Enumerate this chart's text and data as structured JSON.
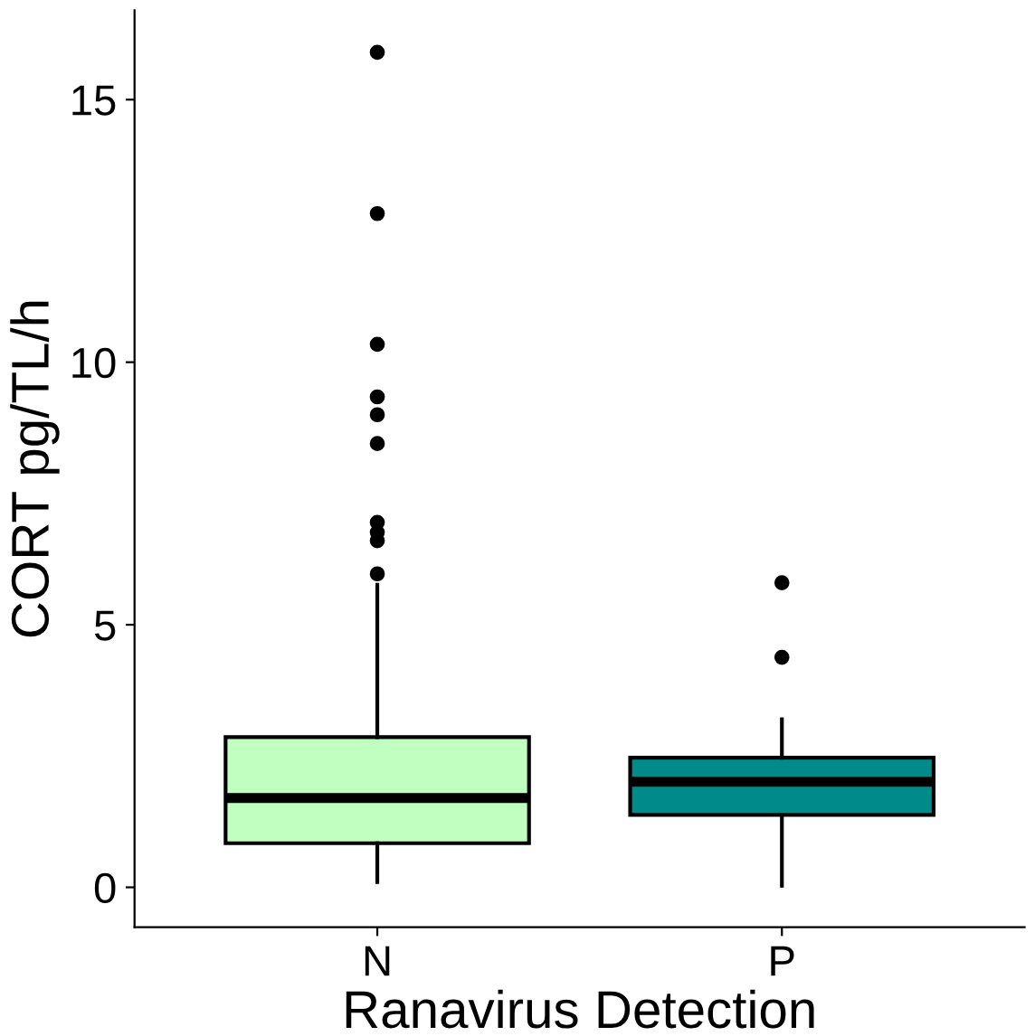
{
  "chart_data": {
    "type": "box",
    "xlabel": "Ranavirus Detection",
    "ylabel": "CORT pg/TL/h",
    "categories": [
      "N",
      "P"
    ],
    "colors": [
      "#c1ffc1",
      "#008b8b"
    ],
    "boxes": [
      {
        "low": 0.1,
        "q1": 0.84,
        "median": 1.7,
        "q3": 2.86,
        "high": 5.76,
        "outliers": [
          5.97,
          6.6,
          6.76,
          6.95,
          8.45,
          9.0,
          9.34,
          10.34,
          12.83,
          15.9
        ]
      },
      {
        "low": 0.03,
        "q1": 1.38,
        "median": 2.01,
        "q3": 2.47,
        "high": 3.2,
        "outliers": [
          4.38,
          5.8
        ]
      }
    ],
    "ylim": [
      -0.76,
      16.7
    ],
    "yticks": [
      0,
      5,
      10,
      15
    ],
    "grid": false
  }
}
